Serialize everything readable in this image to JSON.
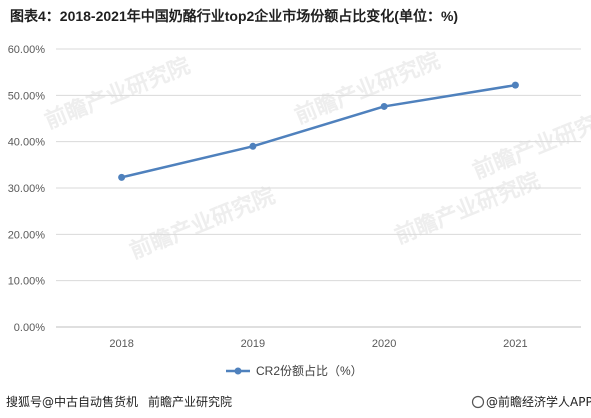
{
  "chart_data": {
    "type": "line",
    "title": "图表4：2018-2021年中国奶酪行业top2企业市场份额占比变化(单位：%)",
    "x": [
      "2018",
      "2019",
      "2020",
      "2021"
    ],
    "series": [
      {
        "name": "CR2份额占比（%）",
        "values": [
          32.3,
          39.0,
          47.6,
          52.2
        ]
      }
    ],
    "ylim": [
      0,
      60
    ],
    "yticks": [
      0,
      10,
      20,
      30,
      40,
      50,
      60
    ],
    "y_tick_labels": [
      "0.00%",
      "10.00%",
      "20.00%",
      "30.00%",
      "40.00%",
      "50.00%",
      "60.00%"
    ],
    "grid": true,
    "legend_position": "bottom",
    "line_color": "#4f81bd"
  },
  "watermark": "前瞻产业研究院",
  "footer": {
    "left": "搜狐号@中古自动售货机",
    "middle": "前瞻产业研究院",
    "right": "@前瞻经济学人APP"
  }
}
